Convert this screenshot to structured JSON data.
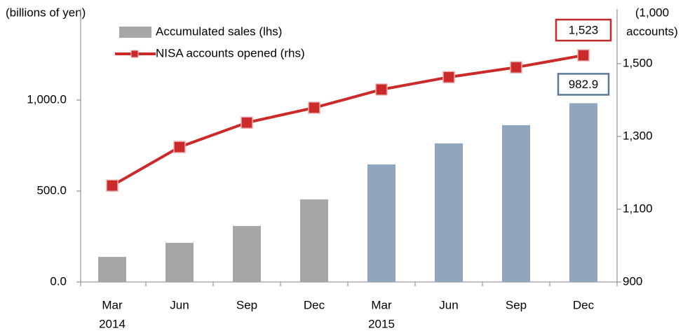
{
  "chart_data": {
    "type": "bar-line",
    "ylabel": "(billions of yen)",
    "y2label": [
      "(1,000",
      "accounts)"
    ],
    "categories": [
      "Mar",
      "Jun",
      "Sep",
      "Dec",
      "Mar",
      "Jun",
      "Sep",
      "Dec"
    ],
    "x_group_labels": [
      "2014",
      null,
      null,
      null,
      "2015",
      null,
      null,
      null
    ],
    "series": [
      {
        "name": "Accumulated sales (lhs)",
        "type": "bar",
        "axis": "y",
        "color": "#a6a6a6",
        "colors": [
          "#a6a6a6",
          "#a6a6a6",
          "#a6a6a6",
          "#a6a6a6",
          "#8fa6bc",
          "#8fa6bc",
          "#8fa6bc",
          "#8fa6bc"
        ],
        "values": [
          138,
          215,
          308,
          454,
          646,
          762,
          862,
          982.9
        ],
        "value_labels": [
          null,
          null,
          null,
          null,
          null,
          null,
          null,
          "982.9"
        ],
        "label_border": "#5a7a99"
      },
      {
        "name": "NISA accounts opened (rhs)",
        "type": "line",
        "axis": "y2",
        "color": "#cc2929",
        "values": [
          1165,
          1271,
          1338,
          1379,
          1429,
          1463,
          1490,
          1523
        ],
        "value_labels": [
          null,
          null,
          null,
          null,
          null,
          null,
          null,
          "1,523"
        ],
        "label_border": "#c0282a"
      }
    ],
    "ylim": [
      0,
      1500
    ],
    "yticks": [
      {
        "value": 0,
        "label": "0.0"
      },
      {
        "value": 500,
        "label": "500.0"
      },
      {
        "value": 1000,
        "label": "1,000.0"
      }
    ],
    "y2lim": [
      900,
      1650
    ],
    "y2ticks": [
      900,
      {
        "value": 1100,
        "label": "1,100"
      },
      {
        "value": 1300,
        "label": "1,300"
      },
      {
        "value": 1500,
        "label": "1,500"
      }
    ]
  }
}
